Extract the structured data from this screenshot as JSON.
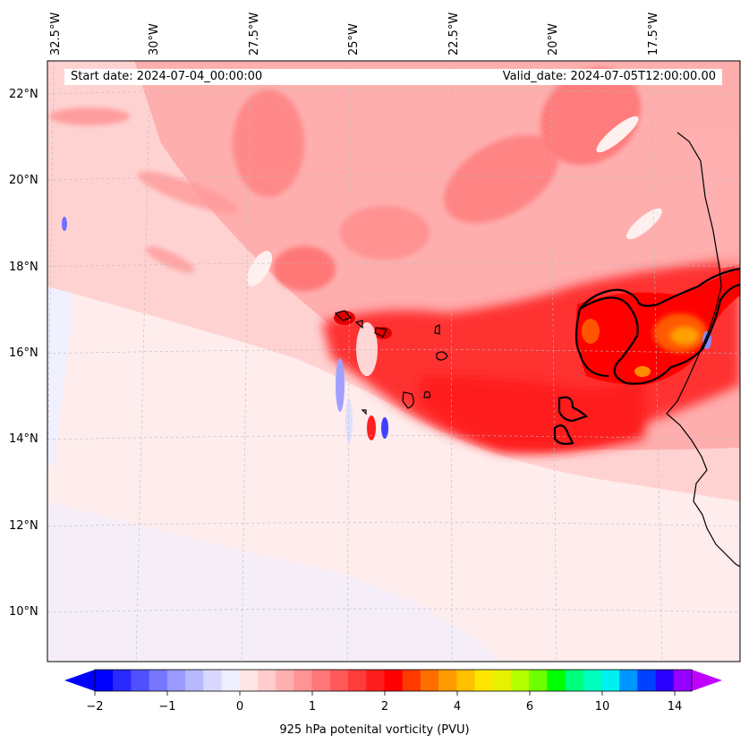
{
  "map": {
    "start_date": "Start date: 2024-07-04_00:00:00",
    "valid_date": "Valid_date: 2024-07-05T12:00:00.00",
    "lon_labels": [
      "32.5°W",
      "30°W",
      "27.5°W",
      "25°W",
      "22.5°W",
      "20°W",
      "17.5°W"
    ],
    "lat_labels": [
      "22°N",
      "20°N",
      "18°N",
      "16°N",
      "14°N",
      "12°N",
      "10°N"
    ]
  },
  "colorbar": {
    "title": "925 hPa potenital vorticity (PVU)",
    "tick_labels": [
      "−2",
      "−1",
      "0",
      "1",
      "2",
      "4",
      "6",
      "10",
      "14"
    ],
    "colors": [
      "#0000ff",
      "#2a2aff",
      "#5050ff",
      "#7676ff",
      "#9a9aff",
      "#b8b8ff",
      "#d8d8ff",
      "#eeeeff",
      "#ffe6e6",
      "#ffcccc",
      "#ffb0b0",
      "#ff9494",
      "#ff7777",
      "#ff5a5a",
      "#ff3c3c",
      "#ff1e1e",
      "#ff0000",
      "#ff3b00",
      "#ff6e00",
      "#ff9a00",
      "#ffc000",
      "#ffe600",
      "#e6f000",
      "#b4ff00",
      "#6eff00",
      "#00ff00",
      "#00ff7a",
      "#00ffbe",
      "#00f0f0",
      "#0096ff",
      "#0040ff",
      "#2a00ff",
      "#9600ff"
    ],
    "extend_low_color": "#0000ff",
    "extend_high_color": "#c000ff"
  }
}
